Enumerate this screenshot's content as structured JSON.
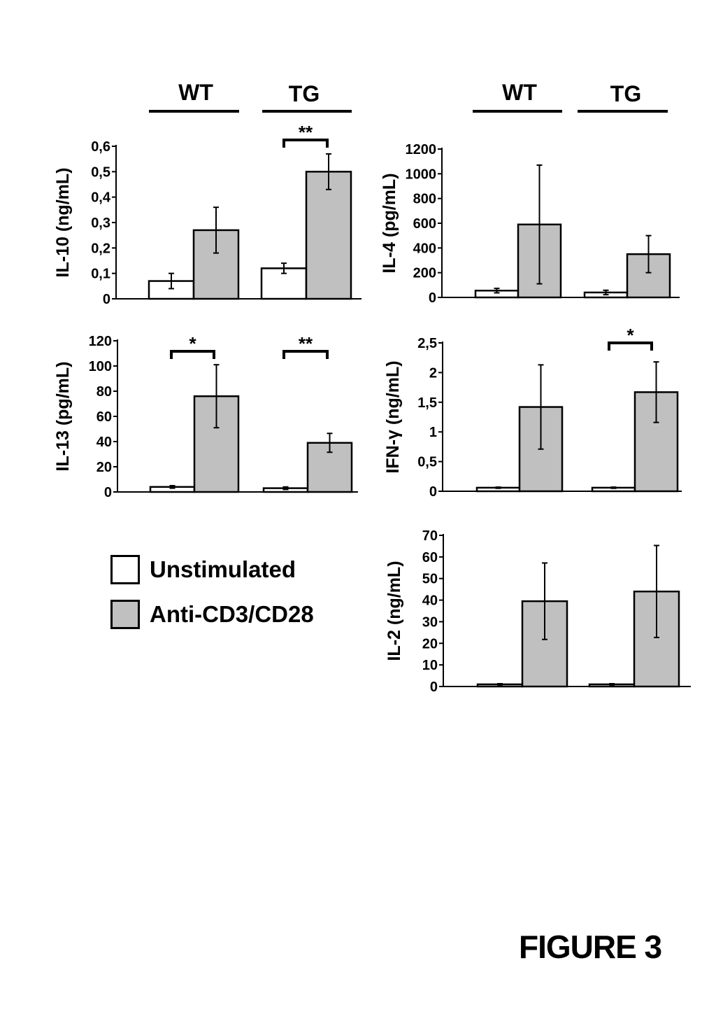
{
  "figure_label": "FIGURE 3",
  "group_headers": {
    "left": [
      "WT",
      "TG"
    ],
    "right": [
      "WT",
      "TG"
    ]
  },
  "legend": [
    {
      "label": "Unstimulated",
      "color": "#ffffff"
    },
    {
      "label": "Anti-CD3/CD28",
      "color": "#c0c0c0"
    }
  ],
  "chart_data": [
    {
      "type": "bar",
      "ylabel": "IL-10 (ng/mL)",
      "categories": [
        "WT",
        "TG"
      ],
      "ylim": [
        0,
        0.6
      ],
      "yticks": [
        "0",
        "0,1",
        "0,2",
        "0,3",
        "0,4",
        "0,5",
        "0,6"
      ],
      "series": [
        {
          "name": "Unstimulated",
          "values": [
            0.07,
            0.12
          ],
          "errors": [
            0.03,
            0.02
          ]
        },
        {
          "name": "Anti-CD3/CD28",
          "values": [
            0.27,
            0.5
          ],
          "errors": [
            0.09,
            0.07
          ]
        }
      ],
      "significance": [
        {
          "group": 1,
          "label": "**"
        }
      ]
    },
    {
      "type": "bar",
      "ylabel": "IL-4 (pg/mL)",
      "categories": [
        "WT",
        "TG"
      ],
      "ylim": [
        0,
        1200
      ],
      "yticks": [
        "0",
        "200",
        "400",
        "600",
        "800",
        "1000",
        "1200"
      ],
      "series": [
        {
          "name": "Unstimulated",
          "values": [
            55,
            40
          ],
          "errors": [
            18,
            18
          ]
        },
        {
          "name": "Anti-CD3/CD28",
          "values": [
            590,
            350
          ],
          "errors": [
            480,
            150
          ]
        }
      ],
      "significance": []
    },
    {
      "type": "bar",
      "ylabel": "IL-13 (pg/mL)",
      "categories": [
        "WT",
        "TG"
      ],
      "ylim": [
        0,
        120
      ],
      "yticks": [
        "0",
        "20",
        "40",
        "60",
        "80",
        "100",
        "120"
      ],
      "series": [
        {
          "name": "Unstimulated",
          "values": [
            4,
            3
          ],
          "errors": [
            1,
            1
          ]
        },
        {
          "name": "Anti-CD3/CD28",
          "values": [
            76,
            39
          ],
          "errors": [
            25,
            7.5
          ]
        }
      ],
      "significance": [
        {
          "group": 0,
          "label": "*"
        },
        {
          "group": 1,
          "label": "**"
        }
      ]
    },
    {
      "type": "bar",
      "ylabel": "IFN-γ (ng/mL)",
      "categories": [
        "WT",
        "TG"
      ],
      "ylim": [
        0,
        2.5
      ],
      "yticks": [
        "0",
        "0,5",
        "1",
        "1,5",
        "2",
        "2,5"
      ],
      "series": [
        {
          "name": "Unstimulated",
          "values": [
            0.06,
            0.06
          ],
          "errors": [
            0.01,
            0.01
          ]
        },
        {
          "name": "Anti-CD3/CD28",
          "values": [
            1.42,
            1.67
          ],
          "errors": [
            0.71,
            0.51
          ]
        }
      ],
      "significance": [
        {
          "group": 1,
          "label": "*"
        }
      ]
    },
    {
      "type": "bar",
      "ylabel": "IL-2 (ng/mL)",
      "categories": [
        "WT",
        "TG"
      ],
      "ylim": [
        0,
        70
      ],
      "yticks": [
        "0",
        "10",
        "20",
        "30",
        "40",
        "50",
        "60",
        "70"
      ],
      "series": [
        {
          "name": "Unstimulated",
          "values": [
            1,
            1
          ],
          "errors": [
            0.3,
            0.3
          ]
        },
        {
          "name": "Anti-CD3/CD28",
          "values": [
            39.5,
            44
          ],
          "errors": [
            17.7,
            21.3
          ]
        }
      ],
      "significance": []
    }
  ]
}
